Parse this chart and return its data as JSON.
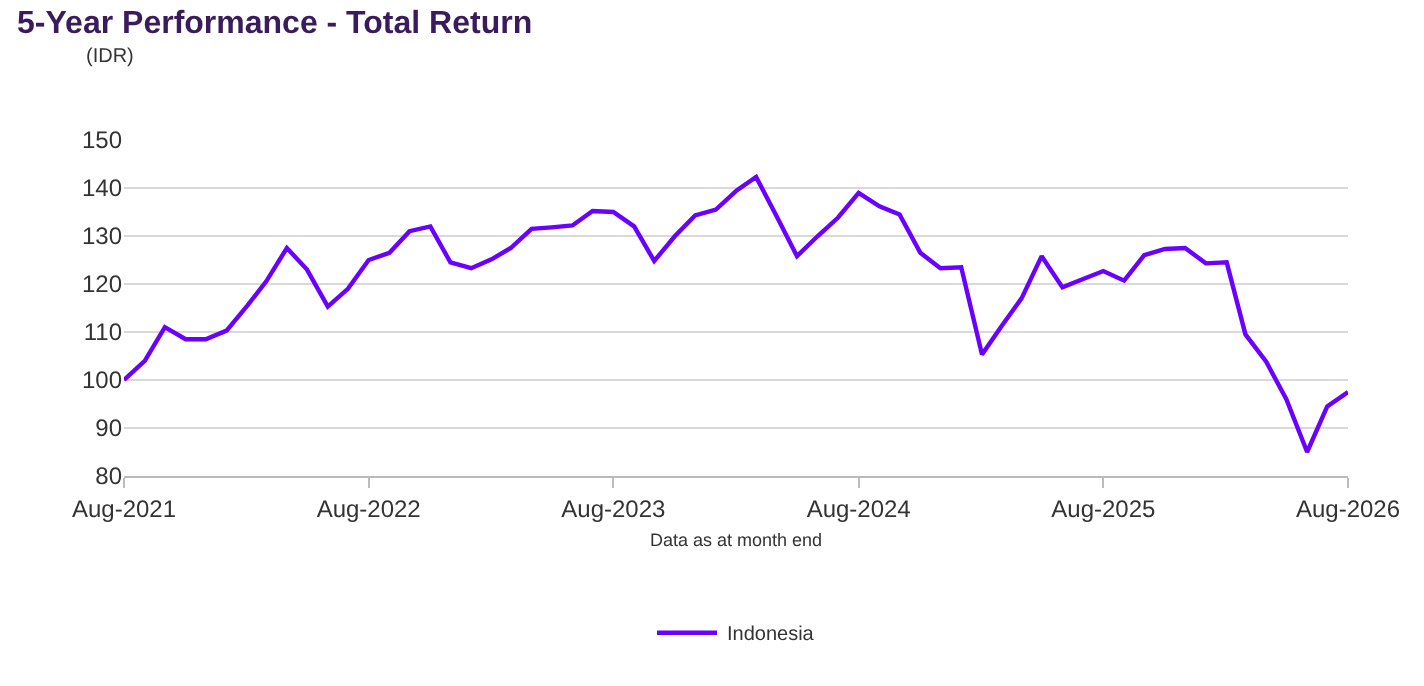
{
  "chart_data": {
    "type": "line",
    "title": "5-Year Performance - Total Return",
    "ylabel": "(IDR)",
    "xlabel": "Data as at month end",
    "x": [
      "2021-08",
      "2021-09",
      "2021-10",
      "2021-11",
      "2021-12",
      "2022-01",
      "2022-02",
      "2022-03",
      "2022-04",
      "2022-05",
      "2022-06",
      "2022-07",
      "2022-08",
      "2022-09",
      "2022-10",
      "2022-11",
      "2022-12",
      "2023-01",
      "2023-02",
      "2023-03",
      "2023-04",
      "2023-05",
      "2023-06",
      "2023-07",
      "2023-08",
      "2023-09",
      "2023-10",
      "2023-11",
      "2023-12",
      "2024-01",
      "2024-02",
      "2024-03",
      "2024-04",
      "2024-05",
      "2024-06",
      "2024-07",
      "2024-08",
      "2024-09",
      "2024-10",
      "2024-11",
      "2024-12",
      "2025-01",
      "2025-02",
      "2025-03",
      "2025-04",
      "2025-05",
      "2025-06",
      "2025-07",
      "2025-08",
      "2025-09",
      "2025-10",
      "2025-11",
      "2025-12",
      "2026-01",
      "2026-02",
      "2026-03",
      "2026-04",
      "2026-05",
      "2026-06",
      "2026-07",
      "2026-08"
    ],
    "series": [
      {
        "name": "Indonesia",
        "color": "#6a00ff",
        "values": [
          100,
          104,
          111,
          108.5,
          108.5,
          110.3,
          115.5,
          120.5,
          127.5,
          123,
          115.3,
          119,
          125,
          126.5,
          131,
          132,
          124.5,
          123.3,
          125.2,
          127.5,
          131.5,
          131.8,
          132.2,
          135.2,
          135,
          132,
          124.8,
          130,
          134.3,
          135.5,
          139.5,
          142.3,
          134,
          125.8,
          130,
          133.8,
          139,
          136.2,
          134.5,
          126.5,
          123.3,
          123.5,
          105.3,
          111,
          117,
          125.8,
          119.3,
          121,
          122.7,
          120.7,
          126,
          127.3,
          127.5,
          124.3,
          124.5,
          109.5,
          103.8,
          96,
          85,
          94.5,
          97.5
        ]
      }
    ],
    "xlim": [
      "2021-08",
      "2026-08"
    ],
    "xticks": [
      {
        "value": "2021-08",
        "label": "Aug-2021"
      },
      {
        "value": "2022-08",
        "label": "Aug-2022"
      },
      {
        "value": "2023-08",
        "label": "Aug-2023"
      },
      {
        "value": "2024-08",
        "label": "Aug-2024"
      },
      {
        "value": "2025-08",
        "label": "Aug-2025"
      },
      {
        "value": "2026-08",
        "label": "Aug-2026"
      }
    ],
    "ylim": [
      80,
      150
    ],
    "yticks": [
      80,
      90,
      100,
      110,
      120,
      130,
      140,
      150
    ],
    "grid": "y",
    "legend": "bottom",
    "marker": "none",
    "line_style": "solid"
  }
}
